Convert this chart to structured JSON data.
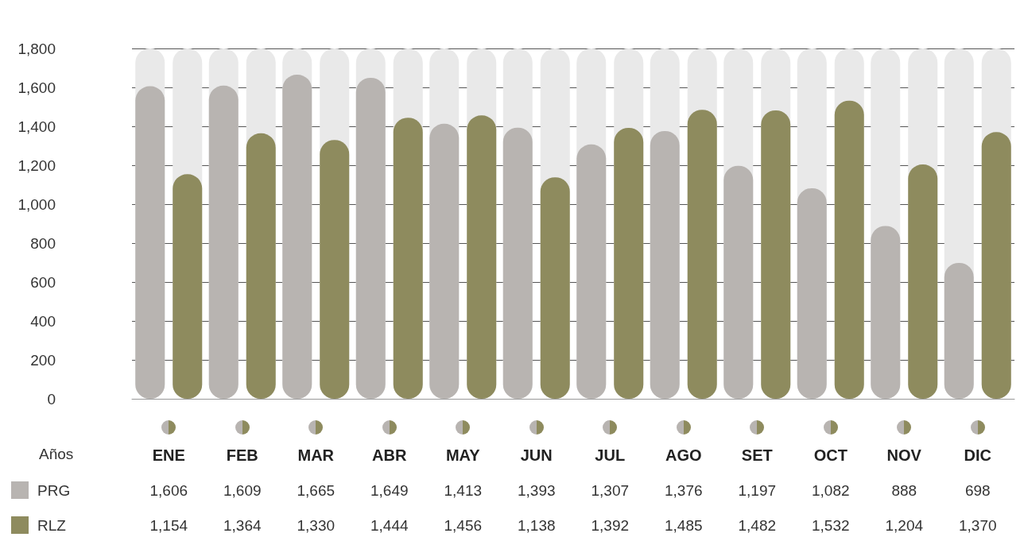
{
  "chart_data": {
    "type": "bar",
    "xlabel": "Años",
    "categories": [
      "ENE",
      "FEB",
      "MAR",
      "ABR",
      "MAY",
      "JUN",
      "JUL",
      "AGO",
      "SET",
      "OCT",
      "NOV",
      "DIC"
    ],
    "series": [
      {
        "name": "PRG",
        "color": "#b8b4b1",
        "values": [
          1606,
          1609,
          1665,
          1649,
          1413,
          1393,
          1307,
          1376,
          1197,
          1082,
          888,
          698
        ],
        "value_labels": [
          "1,606",
          "1,609",
          "1,665",
          "1,649",
          "1,413",
          "1,393",
          "1,307",
          "1,376",
          "1,197",
          "1,082",
          "888",
          "698"
        ]
      },
      {
        "name": "RLZ",
        "color": "#8e8b5e",
        "values": [
          1154,
          1364,
          1330,
          1444,
          1456,
          1138,
          1392,
          1485,
          1482,
          1532,
          1204,
          1370
        ],
        "value_labels": [
          "1,154",
          "1,364",
          "1,330",
          "1,444",
          "1,456",
          "1,138",
          "1,392",
          "1,485",
          "1,482",
          "1,532",
          "1,204",
          "1,370"
        ]
      }
    ],
    "ylim": [
      0,
      1800
    ],
    "yticks": [
      0,
      200,
      400,
      600,
      800,
      {
        "value": 1000,
        "label": "1,000"
      },
      {
        "value": 1200,
        "label": "1,200"
      },
      {
        "value": 1400,
        "label": "1,400"
      },
      {
        "value": 1600,
        "label": "1,600"
      },
      {
        "value": 1800,
        "label": "1,800"
      }
    ],
    "grid": "y",
    "legend": "bottom left"
  }
}
